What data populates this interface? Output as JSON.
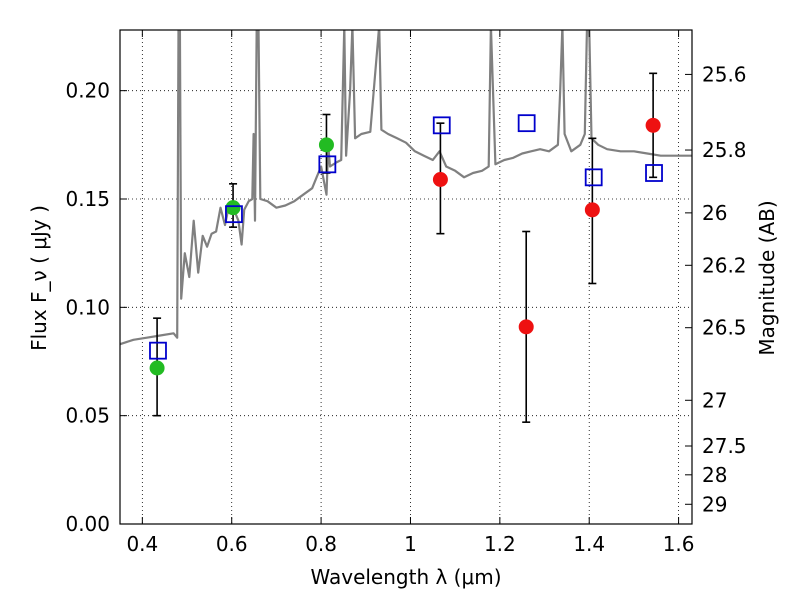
{
  "chart_data": {
    "type": "scatter",
    "xlabel": "Wavelength  λ (μm)",
    "ylabel": "Flux  F_ν  ( μJy )",
    "ylabel_right": "Magnitude (AB)",
    "xlim": [
      0.35,
      1.63
    ],
    "ylim": [
      0.0,
      0.228
    ],
    "grid": true,
    "x_ticks": [
      0.4,
      0.6,
      0.8,
      1.0,
      1.2,
      1.4,
      1.6
    ],
    "x_tick_labels": [
      "0.4",
      "0.6",
      "0.8",
      "1",
      "1.2",
      "1.4",
      "1.6"
    ],
    "y_ticks": [
      0.0,
      0.05,
      0.1,
      0.15,
      0.2
    ],
    "y_tick_labels": [
      "0.00",
      "0.05",
      "0.10",
      "0.15",
      "0.20"
    ],
    "right_ticks": [
      {
        "label": "25.6",
        "flux": 0.2075
      },
      {
        "label": "25.8",
        "flux": 0.1726
      },
      {
        "label": "26",
        "flux": 0.1436
      },
      {
        "label": "26.2",
        "flux": 0.1194
      },
      {
        "label": "26.5",
        "flux": 0.0906
      },
      {
        "label": "27",
        "flux": 0.0571
      },
      {
        "label": "27.5",
        "flux": 0.036
      },
      {
        "label": "28",
        "flux": 0.0227
      },
      {
        "label": "29",
        "flux": 0.0091
      }
    ],
    "colors": {
      "spectrum": "#808080",
      "model_boxes": "#0000cc",
      "green_points": "#22bb22",
      "red_points": "#ee1111",
      "errorbars": "#000000",
      "grid": "#000000"
    },
    "series": [
      {
        "type": "line",
        "values": [
          [
            0.35,
            0.083
          ],
          [
            0.38,
            0.085
          ],
          [
            0.41,
            0.086
          ],
          [
            0.44,
            0.087
          ],
          [
            0.47,
            0.088
          ],
          [
            0.478,
            0.086
          ],
          [
            0.481,
            0.23
          ],
          [
            0.484,
            0.23
          ],
          [
            0.487,
            0.104
          ],
          [
            0.495,
            0.125
          ],
          [
            0.505,
            0.114
          ],
          [
            0.515,
            0.14
          ],
          [
            0.525,
            0.116
          ],
          [
            0.535,
            0.133
          ],
          [
            0.545,
            0.128
          ],
          [
            0.555,
            0.134
          ],
          [
            0.565,
            0.135
          ],
          [
            0.575,
            0.146
          ],
          [
            0.585,
            0.138
          ],
          [
            0.595,
            0.148
          ],
          [
            0.605,
            0.145
          ],
          [
            0.615,
            0.14
          ],
          [
            0.622,
            0.129
          ],
          [
            0.628,
            0.145
          ],
          [
            0.638,
            0.149
          ],
          [
            0.646,
            0.15
          ],
          [
            0.649,
            0.18
          ],
          [
            0.652,
            0.14
          ],
          [
            0.656,
            0.23
          ],
          [
            0.66,
            0.23
          ],
          [
            0.664,
            0.15
          ],
          [
            0.68,
            0.149
          ],
          [
            0.7,
            0.146
          ],
          [
            0.72,
            0.147
          ],
          [
            0.74,
            0.149
          ],
          [
            0.76,
            0.152
          ],
          [
            0.78,
            0.155
          ],
          [
            0.79,
            0.16
          ],
          [
            0.8,
            0.165
          ],
          [
            0.812,
            0.152
          ],
          [
            0.816,
            0.175
          ],
          [
            0.82,
            0.165
          ],
          [
            0.835,
            0.167
          ],
          [
            0.845,
            0.168
          ],
          [
            0.852,
            0.23
          ],
          [
            0.856,
            0.17
          ],
          [
            0.865,
            0.2
          ],
          [
            0.87,
            0.23
          ],
          [
            0.876,
            0.178
          ],
          [
            0.89,
            0.18
          ],
          [
            0.91,
            0.181
          ],
          [
            0.93,
            0.23
          ],
          [
            0.935,
            0.182
          ],
          [
            0.95,
            0.18
          ],
          [
            0.97,
            0.178
          ],
          [
            0.99,
            0.176
          ],
          [
            1.01,
            0.172
          ],
          [
            1.03,
            0.17
          ],
          [
            1.05,
            0.168
          ],
          [
            1.065,
            0.172
          ],
          [
            1.08,
            0.165
          ],
          [
            1.1,
            0.163
          ],
          [
            1.12,
            0.16
          ],
          [
            1.14,
            0.162
          ],
          [
            1.16,
            0.163
          ],
          [
            1.175,
            0.165
          ],
          [
            1.18,
            0.23
          ],
          [
            1.19,
            0.166
          ],
          [
            1.21,
            0.168
          ],
          [
            1.23,
            0.169
          ],
          [
            1.25,
            0.171
          ],
          [
            1.27,
            0.172
          ],
          [
            1.29,
            0.173
          ],
          [
            1.31,
            0.172
          ],
          [
            1.33,
            0.175
          ],
          [
            1.335,
            0.2
          ],
          [
            1.34,
            0.23
          ],
          [
            1.345,
            0.18
          ],
          [
            1.36,
            0.172
          ],
          [
            1.38,
            0.175
          ],
          [
            1.39,
            0.18
          ],
          [
            1.395,
            0.23
          ],
          [
            1.4,
            0.23
          ],
          [
            1.405,
            0.178
          ],
          [
            1.42,
            0.175
          ],
          [
            1.44,
            0.173
          ],
          [
            1.47,
            0.172
          ],
          [
            1.5,
            0.172
          ],
          [
            1.53,
            0.171
          ],
          [
            1.56,
            0.17
          ],
          [
            1.6,
            0.17
          ],
          [
            1.63,
            0.17
          ]
        ]
      },
      {
        "type": "scatter",
        "points": [
          {
            "x": 0.435,
            "y": 0.08
          },
          {
            "x": 0.605,
            "y": 0.143
          },
          {
            "x": 0.814,
            "y": 0.166
          },
          {
            "x": 1.07,
            "y": 0.184
          },
          {
            "x": 1.26,
            "y": 0.185
          },
          {
            "x": 1.41,
            "y": 0.16
          },
          {
            "x": 1.545,
            "y": 0.162
          }
        ]
      },
      {
        "type": "scatter",
        "points": [
          {
            "x": 0.433,
            "y": 0.072,
            "yerr": [
              0.05,
              0.095
            ]
          },
          {
            "x": 0.603,
            "y": 0.146,
            "yerr": [
              0.137,
              0.157
            ]
          },
          {
            "x": 0.812,
            "y": 0.175,
            "yerr": [
              0.162,
              0.189
            ]
          }
        ]
      },
      {
        "type": "scatter",
        "points": [
          {
            "x": 1.067,
            "y": 0.159,
            "yerr": [
              0.134,
              0.185
            ]
          },
          {
            "x": 1.259,
            "y": 0.091,
            "yerr": [
              0.047,
              0.135
            ]
          },
          {
            "x": 1.407,
            "y": 0.145,
            "yerr": [
              0.111,
              0.178
            ]
          },
          {
            "x": 1.543,
            "y": 0.184,
            "yerr": [
              0.16,
              0.208
            ]
          }
        ]
      }
    ]
  }
}
